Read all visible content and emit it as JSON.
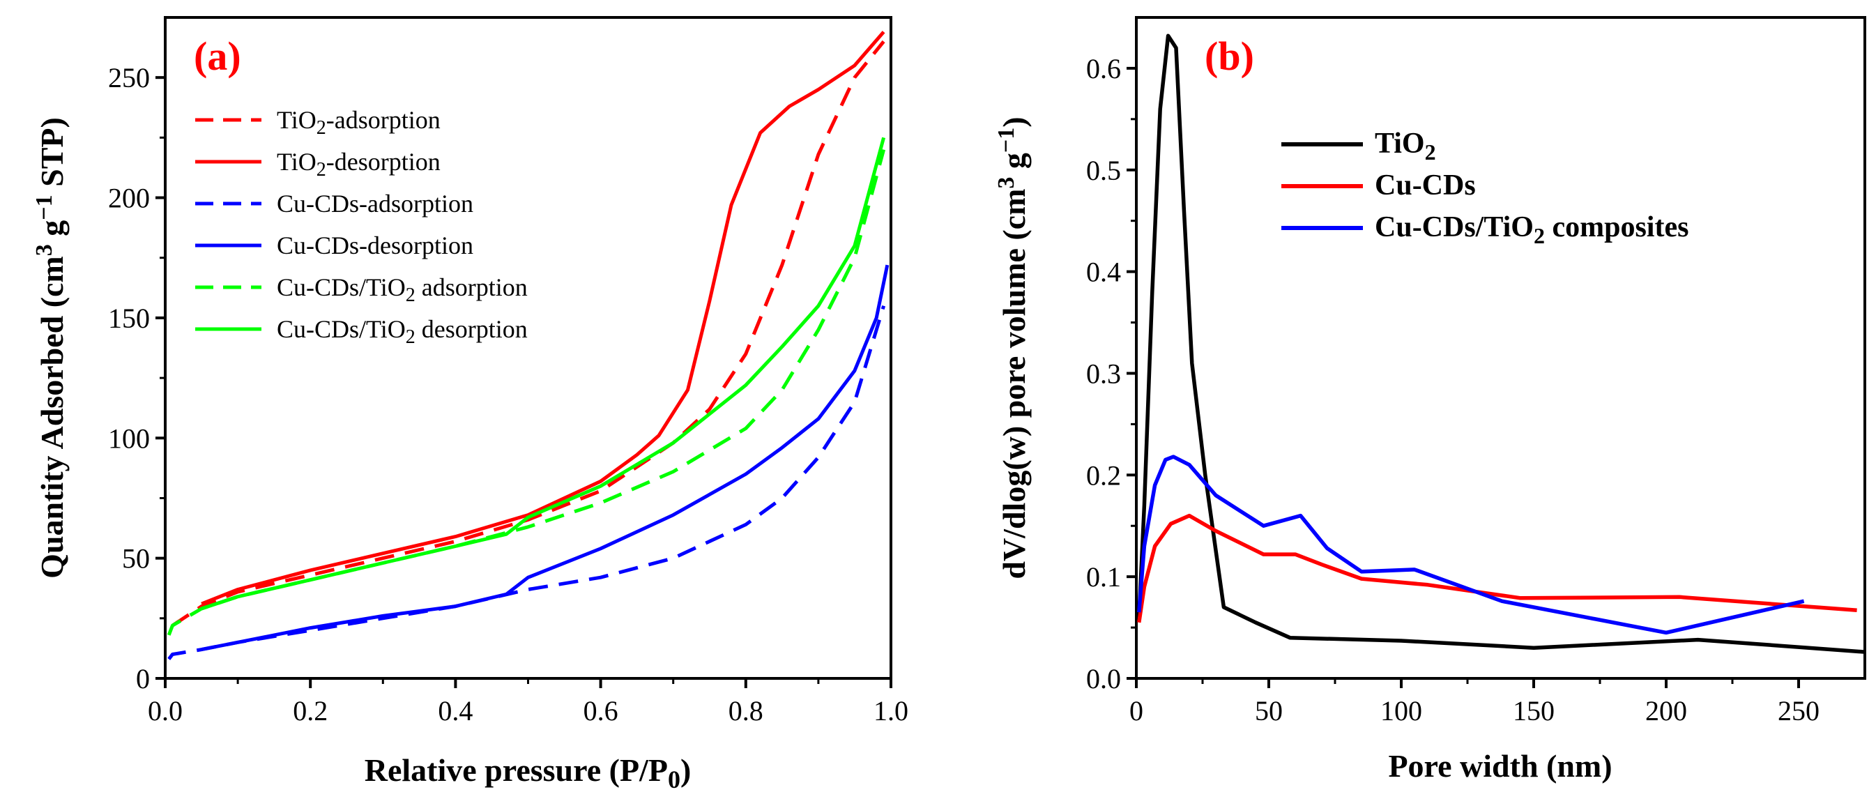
{
  "chart_data": [
    {
      "id": "a",
      "type": "line",
      "panel_label": "(a)",
      "xlabel": "Relative pressure (P/P",
      "xlabel_sub": "0",
      "xlabel_end": ")",
      "ylabel": "Quantity Adsorbed (cm",
      "ylabel_sup1": "3",
      "ylabel_mid": " g",
      "ylabel_sup2": "−1",
      "ylabel_end": " STP)",
      "xlim": [
        0,
        1
      ],
      "ylim": [
        0,
        275
      ],
      "xticks": [
        0,
        0.2,
        0.4,
        0.6,
        0.8,
        1.0
      ],
      "xtick_labels": [
        "0.0",
        "0.2",
        "0.4",
        "0.6",
        "0.8",
        "1.0"
      ],
      "yticks": [
        0,
        50,
        100,
        150,
        200,
        250
      ],
      "ytick_labels": [
        "0",
        "50",
        "100",
        "150",
        "200",
        "250"
      ],
      "series": [
        {
          "name": "TiO2-adsorption",
          "legend_pre": "TiO",
          "legend_sub": "2",
          "legend_post": "-adsorption",
          "color": "#ff0000",
          "dash": true,
          "x": [
            0.01,
            0.05,
            0.1,
            0.2,
            0.3,
            0.4,
            0.5,
            0.6,
            0.7,
            0.75,
            0.8,
            0.85,
            0.9,
            0.95,
            0.99
          ],
          "y": [
            22,
            30,
            36,
            43,
            50,
            57,
            66,
            78,
            98,
            112,
            135,
            172,
            218,
            250,
            265
          ]
        },
        {
          "name": "TiO2-desorption",
          "legend_pre": "TiO",
          "legend_sub": "2",
          "legend_post": "-desorption",
          "color": "#ff0000",
          "dash": false,
          "x": [
            0.05,
            0.1,
            0.2,
            0.3,
            0.4,
            0.5,
            0.6,
            0.65,
            0.68,
            0.72,
            0.75,
            0.78,
            0.82,
            0.86,
            0.9,
            0.95,
            0.99
          ],
          "y": [
            31,
            37,
            45,
            52,
            59,
            68,
            82,
            93,
            101,
            120,
            157,
            197,
            227,
            238,
            245,
            255,
            269
          ]
        },
        {
          "name": "Cu-CDs-adsorption",
          "legend_pre": "Cu-CDs-adsorption",
          "legend_sub": "",
          "legend_post": "",
          "color": "#0000ff",
          "dash": true,
          "x": [
            0.005,
            0.01,
            0.05,
            0.1,
            0.2,
            0.3,
            0.4,
            0.5,
            0.6,
            0.7,
            0.8,
            0.85,
            0.9,
            0.95,
            0.99
          ],
          "y": [
            8,
            10,
            12,
            15,
            20,
            25,
            30,
            37,
            42,
            50,
            64,
            75,
            92,
            115,
            155
          ]
        },
        {
          "name": "Cu-CDs-desorption",
          "legend_pre": "Cu-CDs-desorption",
          "legend_sub": "",
          "legend_post": "",
          "color": "#0000ff",
          "dash": false,
          "x": [
            0.05,
            0.1,
            0.2,
            0.3,
            0.4,
            0.47,
            0.5,
            0.6,
            0.7,
            0.8,
            0.85,
            0.9,
            0.95,
            0.98,
            0.995
          ],
          "y": [
            12,
            15,
            21,
            26,
            30,
            35,
            42,
            54,
            68,
            85,
            96,
            108,
            128,
            150,
            172
          ]
        },
        {
          "name": "Cu-CDs/TiO2 adsorption",
          "legend_pre": "Cu-CDs/TiO",
          "legend_sub": "2",
          "legend_post": " adsorption",
          "color": "#00ff00",
          "dash": true,
          "x": [
            0.005,
            0.01,
            0.05,
            0.1,
            0.2,
            0.3,
            0.4,
            0.5,
            0.6,
            0.7,
            0.8,
            0.85,
            0.9,
            0.95,
            0.99
          ],
          "y": [
            18,
            22,
            29,
            34,
            41,
            48,
            55,
            63,
            73,
            86,
            104,
            120,
            145,
            175,
            220
          ]
        },
        {
          "name": "Cu-CDs/TiO2 desorption",
          "legend_pre": "Cu-CDs/TiO",
          "legend_sub": "2",
          "legend_post": " desorption",
          "color": "#00ff00",
          "dash": false,
          "x": [
            0.05,
            0.1,
            0.2,
            0.3,
            0.4,
            0.47,
            0.5,
            0.6,
            0.7,
            0.8,
            0.85,
            0.9,
            0.95,
            0.99
          ],
          "y": [
            29,
            34,
            41,
            48,
            55,
            60,
            67,
            80,
            98,
            122,
            138,
            155,
            180,
            225
          ]
        }
      ]
    },
    {
      "id": "b",
      "type": "line",
      "panel_label": "(b)",
      "xlabel": "Pore width (nm)",
      "ylabel": "dV/dlog(w) pore volume (cm",
      "ylabel_sup1": "3",
      "ylabel_mid": " g",
      "ylabel_sup2": "−1",
      "ylabel_end": ")",
      "xlim": [
        0,
        275
      ],
      "ylim": [
        0,
        0.65
      ],
      "xticks": [
        0,
        50,
        100,
        150,
        200,
        250
      ],
      "xtick_labels": [
        "0",
        "50",
        "100",
        "150",
        "200",
        "250"
      ],
      "yticks": [
        0,
        0.1,
        0.2,
        0.3,
        0.4,
        0.5,
        0.6
      ],
      "ytick_labels": [
        "0.0",
        "0.1",
        "0.2",
        "0.3",
        "0.4",
        "0.5",
        "0.6"
      ],
      "series": [
        {
          "name": "TiO2",
          "legend_pre": "TiO",
          "legend_sub": "2",
          "legend_post": "",
          "color": "#000000",
          "dash": false,
          "x": [
            1,
            3,
            6,
            9,
            12,
            15,
            18,
            21,
            26,
            33,
            45,
            58,
            100,
            150,
            212,
            275
          ],
          "y": [
            0.06,
            0.17,
            0.38,
            0.56,
            0.632,
            0.62,
            0.46,
            0.31,
            0.2,
            0.07,
            0.055,
            0.04,
            0.037,
            0.03,
            0.038,
            0.026
          ]
        },
        {
          "name": "Cu-CDs",
          "legend_pre": "Cu-CDs",
          "legend_sub": "",
          "legend_post": "",
          "color": "#ff0000",
          "dash": false,
          "x": [
            1,
            3,
            7,
            13,
            20,
            30,
            48,
            60,
            70,
            85,
            110,
            145,
            205,
            272
          ],
          "y": [
            0.055,
            0.09,
            0.13,
            0.152,
            0.16,
            0.145,
            0.122,
            0.122,
            0.112,
            0.098,
            0.092,
            0.079,
            0.08,
            0.067
          ]
        },
        {
          "name": "Cu-CDs/TiO2 composites",
          "legend_pre": "Cu-CDs/TiO",
          "legend_sub": "2",
          "legend_post": " composites",
          "color": "#0000ff",
          "dash": false,
          "x": [
            1,
            3,
            7,
            11,
            14,
            20,
            30,
            48,
            62,
            72,
            85,
            105,
            138,
            200,
            252
          ],
          "y": [
            0.065,
            0.13,
            0.19,
            0.215,
            0.218,
            0.21,
            0.18,
            0.15,
            0.16,
            0.128,
            0.105,
            0.107,
            0.076,
            0.045,
            0.076
          ]
        }
      ]
    }
  ]
}
